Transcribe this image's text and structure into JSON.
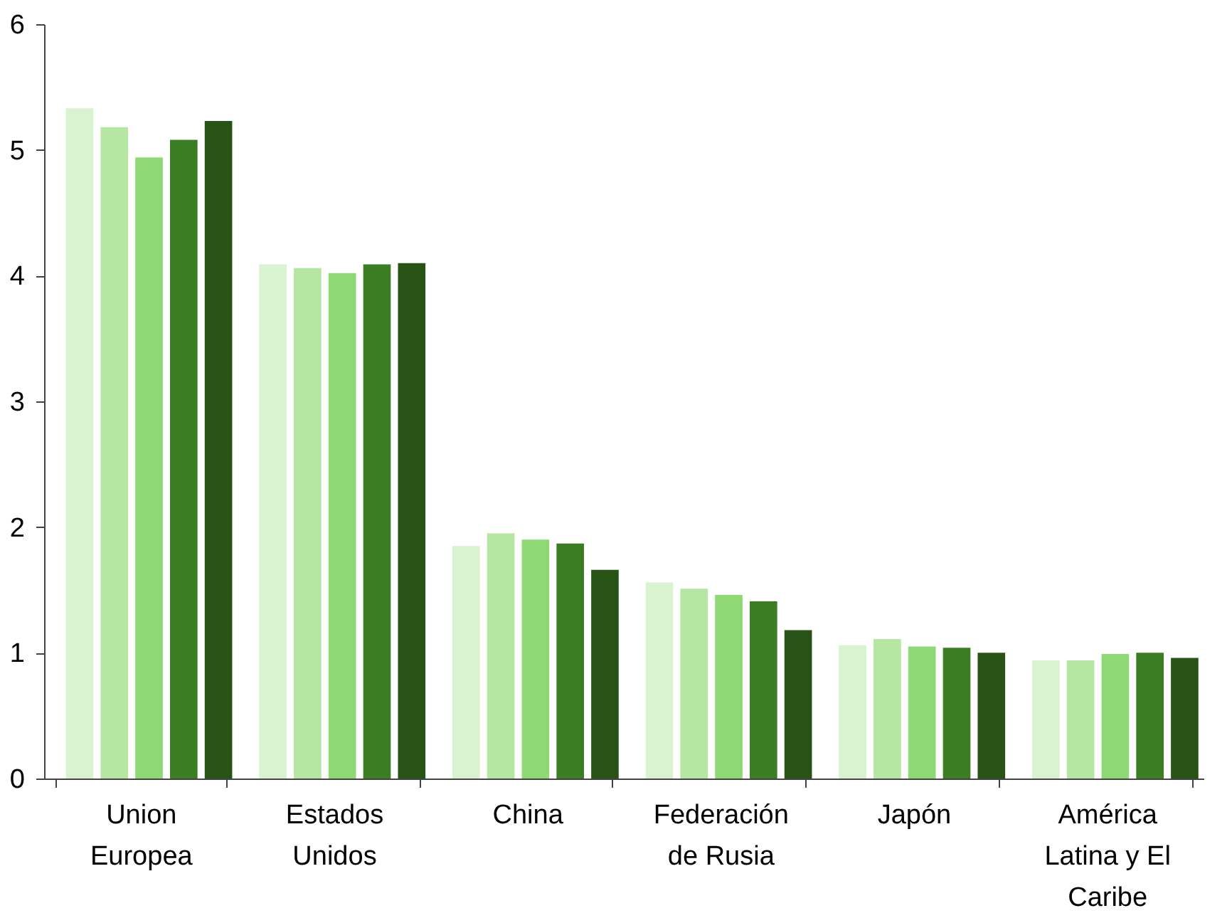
{
  "chart_data": {
    "type": "bar",
    "categories": [
      "Union Europea",
      "Estados Unidos",
      "China",
      "Federación de Rusia",
      "Japón",
      "América Latina y El Caribe"
    ],
    "series": [
      {
        "color": "#d9f2d0",
        "values": [
          5.33,
          4.09,
          1.85,
          1.56,
          1.06,
          0.94
        ]
      },
      {
        "color": "#b5e6a2",
        "values": [
          5.18,
          4.06,
          1.95,
          1.51,
          1.11,
          0.94
        ]
      },
      {
        "color": "#8ed973",
        "values": [
          4.94,
          4.02,
          1.9,
          1.46,
          1.05,
          0.99
        ]
      },
      {
        "color": "#3b7d23",
        "values": [
          5.08,
          4.09,
          1.87,
          1.41,
          1.04,
          1.0
        ]
      },
      {
        "color": "#275317",
        "values": [
          5.23,
          4.1,
          1.66,
          1.18,
          1.0,
          0.96
        ]
      }
    ],
    "ylim": [
      0,
      6
    ],
    "yticks": [
      0,
      1,
      2,
      3,
      4,
      5,
      6
    ],
    "grid": false,
    "legend": false
  }
}
